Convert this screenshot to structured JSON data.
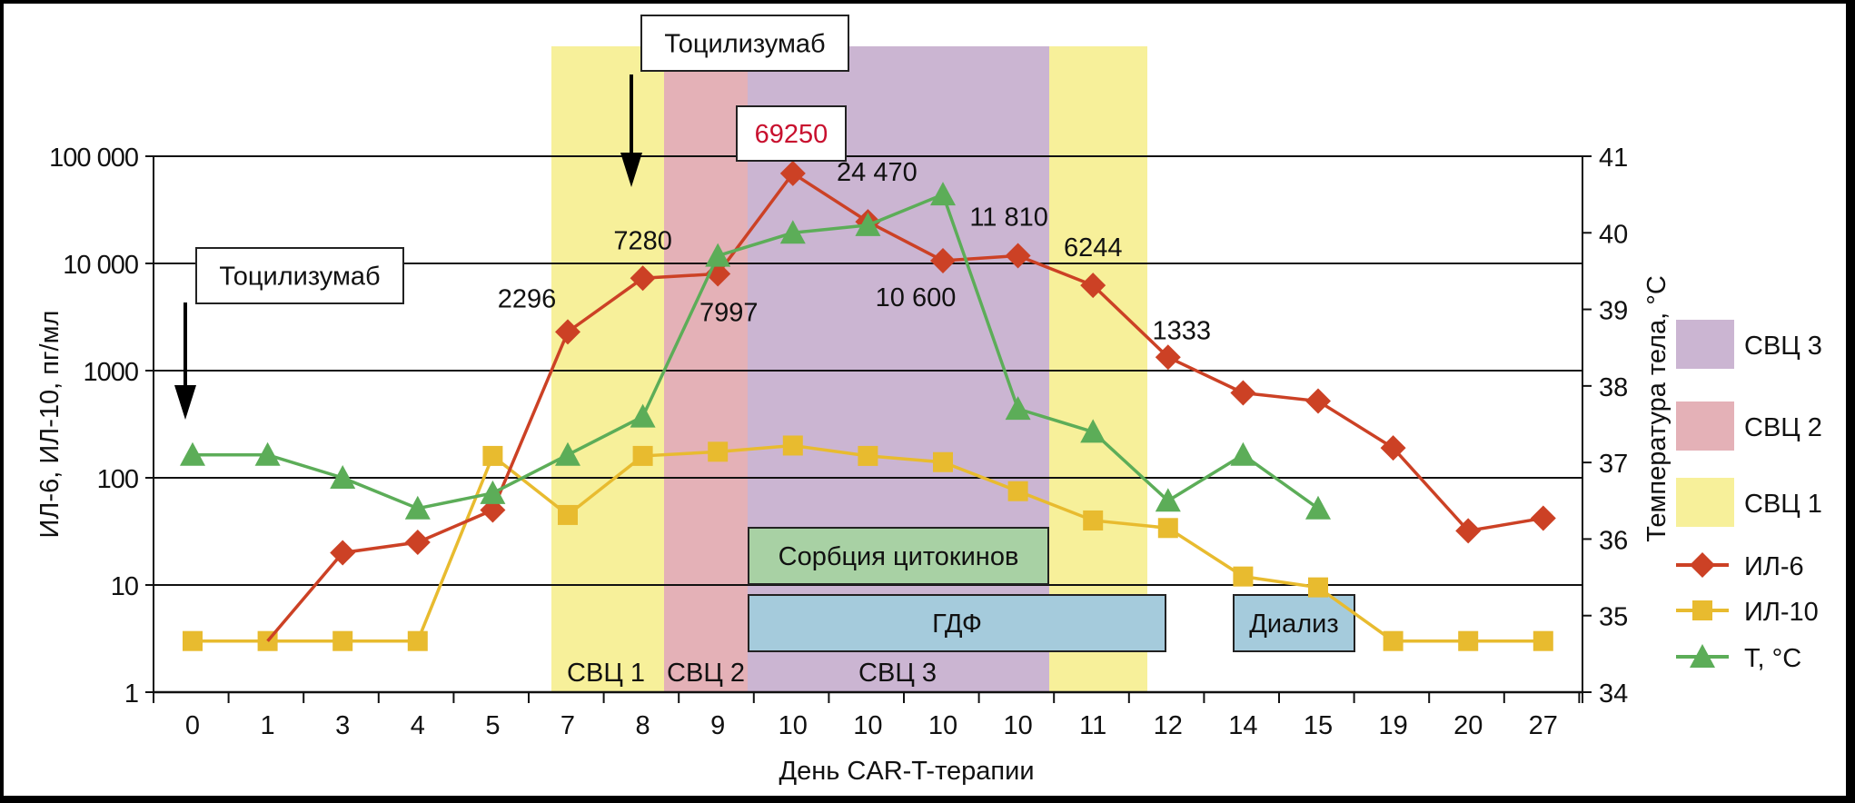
{
  "chart_data": {
    "type": "line",
    "title": "",
    "xlabel": "День CAR-T-терапии",
    "ylabel": "ИЛ-6, ИЛ-10, пг/мл",
    "y2label": "Температура тела, °C",
    "yscale": "log",
    "ylim": [
      1,
      100000
    ],
    "y_ticks": [
      {
        "value": 1,
        "label": "1"
      },
      {
        "value": 10,
        "label": "10"
      },
      {
        "value": 100,
        "label": "100"
      },
      {
        "value": 1000,
        "label": "1000"
      },
      {
        "value": 10000,
        "label": "10 000"
      },
      {
        "value": 100000,
        "label": "100 000"
      }
    ],
    "y2lim": [
      34,
      41
    ],
    "y2_ticks": [
      "34",
      "35",
      "36",
      "37",
      "38",
      "39",
      "40",
      "41"
    ],
    "grid": true,
    "categories": [
      "0",
      "1",
      "3",
      "4",
      "5",
      "7",
      "8",
      "9",
      "10",
      "10",
      "10",
      "10",
      "11",
      "12",
      "14",
      "15",
      "19",
      "20",
      "27"
    ],
    "series": [
      {
        "name": "ИЛ-6",
        "axis": "left",
        "color": "#cc4125",
        "marker": "diamond",
        "values": [
          null,
          3,
          20,
          25,
          50,
          2296,
          7280,
          7997,
          69250,
          24470,
          10600,
          11810,
          6244,
          1333,
          620,
          520,
          190,
          32,
          42
        ]
      },
      {
        "name": "ИЛ-10",
        "axis": "left",
        "color": "#e8bb2f",
        "marker": "square",
        "values": [
          3,
          3,
          3,
          3,
          160,
          45,
          160,
          175,
          200,
          160,
          140,
          75,
          40,
          34,
          12,
          9.5,
          3,
          3,
          3
        ]
      },
      {
        "name": "T, °C",
        "axis": "right",
        "color": "#5cad58",
        "marker": "triangle",
        "values": [
          37.1,
          37.1,
          36.8,
          36.4,
          36.6,
          37.1,
          37.6,
          39.7,
          40.0,
          40.1,
          40.5,
          37.7,
          37.4,
          36.5,
          37.1,
          36.4,
          null,
          null,
          null
        ]
      }
    ],
    "data_labels": [
      {
        "series": "ИЛ-6",
        "index": 5,
        "text": "2296",
        "pos": "upper-left"
      },
      {
        "series": "ИЛ-6",
        "index": 6,
        "text": "7280",
        "pos": "above"
      },
      {
        "series": "ИЛ-6",
        "index": 7,
        "text": "7997",
        "pos": "below"
      },
      {
        "series": "ИЛ-6",
        "index": 8,
        "text": "69250",
        "pos": "boxed-above",
        "color": "#c8102e"
      },
      {
        "series": "ИЛ-6",
        "index": 9,
        "text": "24 470",
        "pos": "upper-right"
      },
      {
        "series": "ИЛ-6",
        "index": 10,
        "text": "10 600",
        "pos": "below"
      },
      {
        "series": "ИЛ-6",
        "index": 11,
        "text": "11 810",
        "pos": "upper-left"
      },
      {
        "series": "ИЛ-6",
        "index": 12,
        "text": "6244",
        "pos": "above"
      },
      {
        "series": "ИЛ-6",
        "index": 13,
        "text": "1333",
        "pos": "upper-right"
      }
    ],
    "phases": [
      {
        "label": "СВЦ 1",
        "from_index": 5,
        "to_index": 6,
        "color": "#f7f09a",
        "show_label": true
      },
      {
        "label": "СВЦ 2",
        "from_index": 7,
        "to_index": 7,
        "color": "#e4b1b7",
        "show_label": true
      },
      {
        "label": "СВЦ 3",
        "from_index": 8,
        "to_index": 11,
        "color": "#cbb5d2",
        "show_label": true
      },
      {
        "label": "СВЦ 1",
        "from_index": 12,
        "to_index": 12,
        "color": "#f7f09a",
        "show_label": false
      }
    ],
    "therapy_bars": [
      {
        "label": "Сорбция цитокинов",
        "from_index": 8,
        "to_index": 11,
        "row": 0,
        "color": "#a8d1a4"
      },
      {
        "label": "ГДФ",
        "from_index": 8,
        "to_index": 13,
        "row": 1,
        "color": "#a5cbdc"
      },
      {
        "label": "Диализ",
        "from_index": 14,
        "to_index": 15,
        "row": 1,
        "color": "#a5cbdc"
      }
    ],
    "annotations": [
      {
        "text": "Тоцилизумаб",
        "type": "arrow-down",
        "index": 0
      },
      {
        "text": "Тоцилизумаб",
        "type": "arrow-down",
        "index": 6
      }
    ],
    "legend": {
      "position": "right",
      "items": [
        {
          "label": "СВЦ 3",
          "type": "patch",
          "color": "#cbb5d2"
        },
        {
          "label": "СВЦ 2",
          "type": "patch",
          "color": "#e4b1b7"
        },
        {
          "label": "СВЦ 1",
          "type": "patch",
          "color": "#f7f09a"
        },
        {
          "label": "ИЛ-6",
          "type": "line",
          "color": "#cc4125",
          "marker": "diamond"
        },
        {
          "label": "ИЛ-10",
          "type": "line",
          "color": "#e8bb2f",
          "marker": "square"
        },
        {
          "label": "T, °C",
          "type": "line",
          "color": "#5cad58",
          "marker": "triangle"
        }
      ]
    }
  }
}
